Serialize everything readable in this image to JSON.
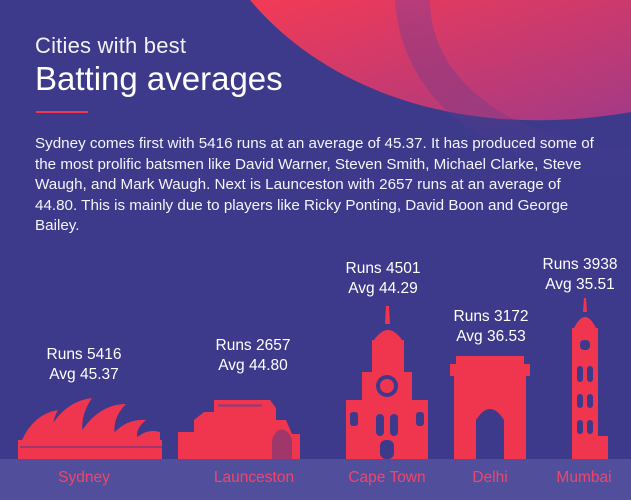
{
  "header": {
    "subtitle": "Cities with best",
    "title": "Batting averages"
  },
  "intro": "Sydney comes first with 5416 runs at an average of 45.37. It has produced some of the most prolific batsmen like David Warner, Steven Smith, Michael Clarke, Steve Waugh, and Mark Waugh. Next is Launceston with 2657 runs at an average of 44.80. This is mainly due to players like Ricky Ponting, David Boon and George Bailey.",
  "colors": {
    "background": "#3d3a8c",
    "accent": "#f0354f",
    "ground": "#514f9c"
  },
  "cities": [
    {
      "name": "Sydney",
      "runs_label": "Runs 5416",
      "avg_label": "Avg 45.37",
      "icon": "sydney-opera-house-icon"
    },
    {
      "name": "Launceston",
      "runs_label": "Runs 2657",
      "avg_label": "Avg 44.80",
      "icon": "launceston-building-icon"
    },
    {
      "name": "Cape Town",
      "runs_label": "Runs 4501",
      "avg_label": "Avg 44.29",
      "icon": "cape-town-clock-tower-icon"
    },
    {
      "name": "Delhi",
      "runs_label": "Runs 3172",
      "avg_label": "Avg 36.53",
      "icon": "india-gate-icon"
    },
    {
      "name": "Mumbai",
      "runs_label": "Runs 3938",
      "avg_label": "Avg 35.51",
      "icon": "mumbai-tower-icon"
    }
  ]
}
